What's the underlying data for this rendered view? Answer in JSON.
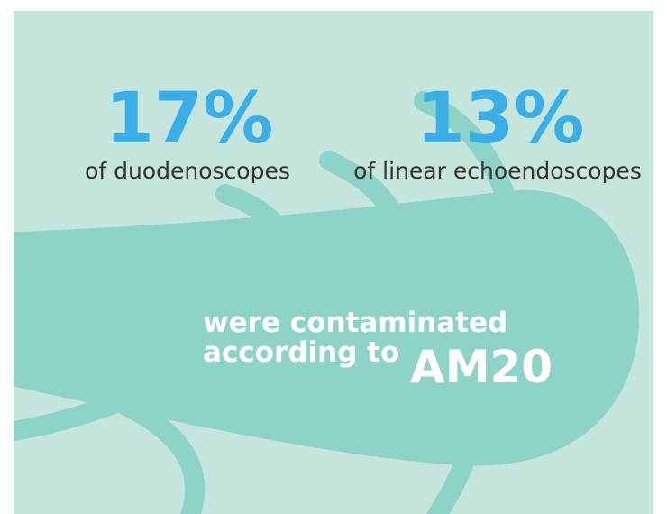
{
  "stats": [
    {
      "value": "17%",
      "label": "of duodenoscopes"
    },
    {
      "value": "13%",
      "label": "of linear echoendoscopes"
    }
  ],
  "caption": {
    "line1": "were contaminated",
    "line2": "according to",
    "emphasis": "AM20"
  }
}
